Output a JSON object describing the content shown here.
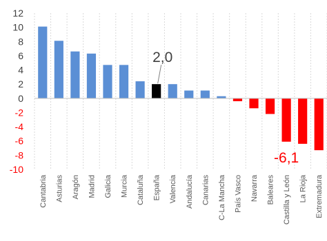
{
  "chart_data": {
    "type": "bar",
    "title": "",
    "xlabel": "",
    "ylabel": "",
    "ylim": [
      -10,
      12
    ],
    "yticks": [
      12,
      10,
      8,
      6,
      4,
      2,
      0,
      -2,
      -4,
      -6,
      -8,
      -10
    ],
    "grid": true,
    "legend": "none",
    "categories": [
      "Cantabria",
      "Asturias",
      "Aragón",
      "Madrid",
      "Galicia",
      "Murcia",
      "Cataluña",
      "España",
      "Valencia",
      "Andalucía",
      "Canarias",
      "C-La Mancha",
      "País Vasco",
      "Navarra",
      "Baleares",
      "Castilla y León",
      "La Rioja",
      "Extremadura"
    ],
    "values": [
      10.1,
      8.1,
      6.6,
      6.3,
      4.7,
      4.7,
      2.4,
      2.0,
      2.0,
      1.1,
      1.1,
      0.3,
      -0.4,
      -1.4,
      -2.2,
      -6.1,
      -6.4,
      -7.3
    ],
    "colors": {
      "positive": "#5B8FD5",
      "negative": "#FF0000",
      "highlight": "#000000",
      "grid": "#D9D9D9",
      "positive_tick": "#404040",
      "negative_tick": "#FF0000",
      "label": "#595959"
    },
    "highlight_category": "España",
    "annotations": [
      {
        "text": "2,0",
        "category": "España",
        "value": 2.0,
        "color": "#404040"
      },
      {
        "text": "-6,1",
        "category": "Castilla y León",
        "value": -6.1,
        "color": "#FF0000"
      }
    ]
  }
}
